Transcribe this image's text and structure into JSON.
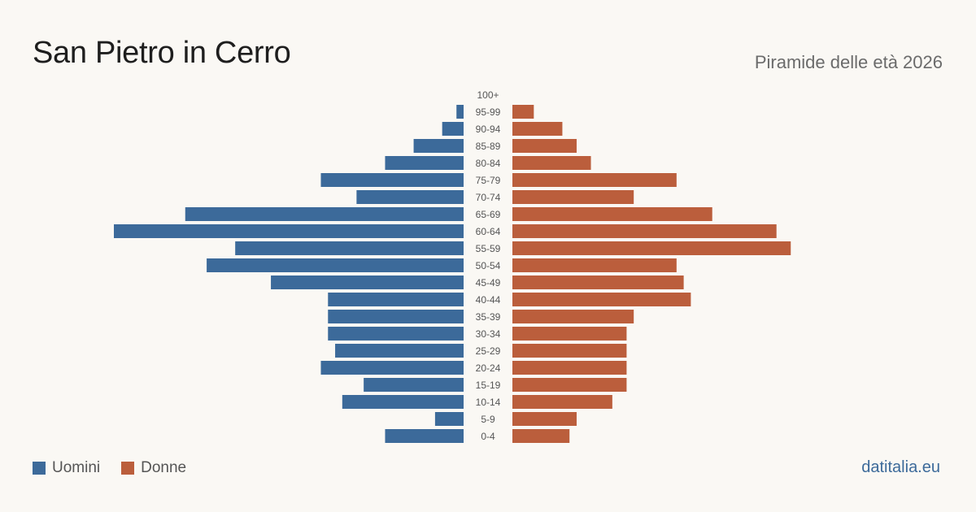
{
  "header": {
    "title": "San Pietro in Cerro",
    "subtitle": "Piramide delle età 2026"
  },
  "footer": {
    "source": "datitalia.eu"
  },
  "colors": {
    "men": "#3c6a9a",
    "women": "#bb5e3c",
    "label": "#555555"
  },
  "chart_data": {
    "type": "bar",
    "orientation": "horizontal",
    "title": "Piramide delle età 2026",
    "categories": [
      "100+",
      "95-99",
      "90-94",
      "85-89",
      "80-84",
      "75-79",
      "70-74",
      "65-69",
      "60-64",
      "55-59",
      "50-54",
      "45-49",
      "40-44",
      "35-39",
      "30-34",
      "25-29",
      "20-24",
      "15-19",
      "10-14",
      "5-9",
      "0-4"
    ],
    "series": [
      {
        "name": "Uomini",
        "values": [
          0,
          1,
          3,
          7,
          11,
          20,
          15,
          39,
          49,
          32,
          36,
          27,
          19,
          19,
          19,
          18,
          20,
          14,
          17,
          4,
          11
        ]
      },
      {
        "name": "Donne",
        "values": [
          0,
          3,
          7,
          9,
          11,
          23,
          17,
          28,
          37,
          39,
          23,
          24,
          25,
          17,
          16,
          16,
          16,
          16,
          14,
          9,
          8
        ]
      }
    ],
    "xlim": [
      0,
      49
    ],
    "legend": "bottom-left",
    "grid": false
  }
}
